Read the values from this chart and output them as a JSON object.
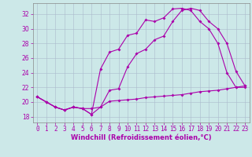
{
  "xlabel": "Windchill (Refroidissement éolien,°C)",
  "background_color": "#cce8e8",
  "line_color": "#aa00aa",
  "grid_color": "#aabbcc",
  "x_ticks": [
    0,
    1,
    2,
    3,
    4,
    5,
    6,
    7,
    8,
    9,
    10,
    11,
    12,
    13,
    14,
    15,
    16,
    17,
    18,
    19,
    20,
    21,
    22,
    23
  ],
  "y_ticks": [
    18,
    20,
    22,
    24,
    26,
    28,
    30,
    32
  ],
  "ylim": [
    17.2,
    33.5
  ],
  "xlim": [
    -0.5,
    23.5
  ],
  "line1_x": [
    0,
    1,
    2,
    3,
    4,
    5,
    6,
    7,
    8,
    9,
    10,
    11,
    12,
    13,
    14,
    15,
    16,
    17,
    18,
    19,
    20,
    21,
    22,
    23
  ],
  "line1_y": [
    20.7,
    20.0,
    19.3,
    18.9,
    19.3,
    19.1,
    19.1,
    19.3,
    20.1,
    20.2,
    20.3,
    20.4,
    20.6,
    20.7,
    20.8,
    20.9,
    21.0,
    21.2,
    21.4,
    21.5,
    21.6,
    21.8,
    22.0,
    22.2
  ],
  "line2_x": [
    0,
    1,
    2,
    3,
    4,
    5,
    6,
    7,
    8,
    9,
    10,
    11,
    12,
    13,
    14,
    15,
    16,
    17,
    18,
    19,
    20,
    21,
    22,
    23
  ],
  "line2_y": [
    20.7,
    20.0,
    19.3,
    18.9,
    19.3,
    19.1,
    18.3,
    19.3,
    21.6,
    21.8,
    24.8,
    26.6,
    27.2,
    28.5,
    29.0,
    31.0,
    32.5,
    32.8,
    32.5,
    31.0,
    30.0,
    28.0,
    24.2,
    22.2
  ],
  "line3_x": [
    0,
    1,
    2,
    3,
    4,
    5,
    6,
    7,
    8,
    9,
    10,
    11,
    12,
    13,
    14,
    15,
    16,
    17,
    18,
    19,
    20,
    21,
    22,
    23
  ],
  "line3_y": [
    20.7,
    20.0,
    19.3,
    18.9,
    19.3,
    19.1,
    18.3,
    24.5,
    26.8,
    27.2,
    29.1,
    29.4,
    31.2,
    31.0,
    31.5,
    32.7,
    32.8,
    32.5,
    31.0,
    30.0,
    28.0,
    24.0,
    22.0,
    22.0
  ],
  "tick_fontsize": 5.5,
  "xlabel_fontsize": 6.0,
  "marker_size": 2.0,
  "line_width": 0.8
}
